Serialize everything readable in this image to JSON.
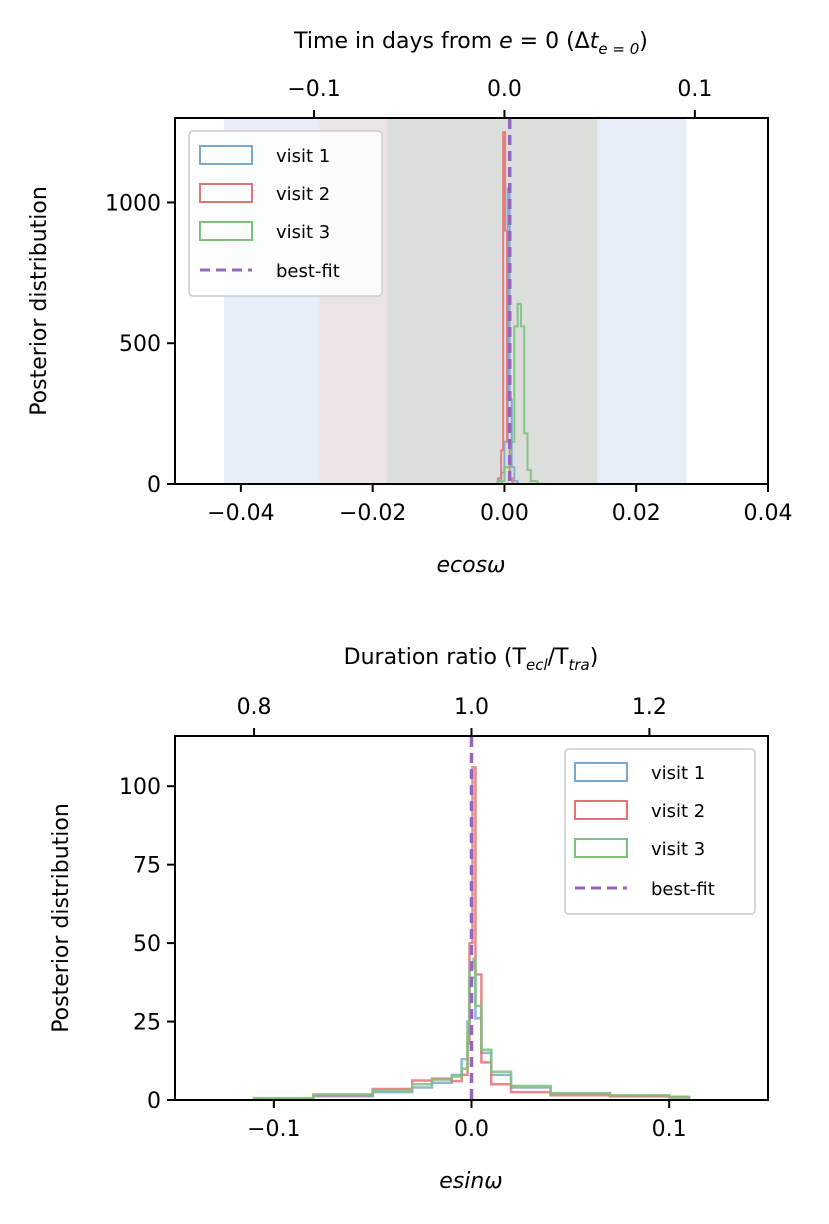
{
  "colors": {
    "visit1": "#7aa9cf",
    "visit2": "#e57373",
    "visit3": "#7cc27c",
    "bestfit": "#9467bd",
    "band1": "#e8eef8",
    "band2": "#ece4e4",
    "band3": "#dcdedb"
  },
  "chart_data": [
    {
      "type": "histogram",
      "title": "",
      "xlabel": "ecosω",
      "ylabel": "Posterior distribution",
      "xlim": [
        -0.05,
        0.04
      ],
      "ylim": [
        0,
        1300
      ],
      "xticks": [
        -0.04,
        -0.02,
        0.0,
        0.02,
        0.04
      ],
      "xtick_labels": [
        "−0.04",
        "−0.02",
        "0.00",
        "0.02",
        "0.04"
      ],
      "yticks": [
        0,
        500,
        1000
      ],
      "ytick_labels": [
        "0",
        "500",
        "1000"
      ],
      "top_axis": {
        "label": "Time in days from e = 0 (Δt",
        "label_main": "Time in days from ",
        "label_e": "e",
        "label_eq": " = 0 (Δ",
        "label_t": "t",
        "label_sub": "e = 0",
        "label_close": ")",
        "ticks": [
          -0.1,
          0.0,
          0.1
        ],
        "tick_labels": [
          "−0.1",
          "0.0",
          "0.1"
        ],
        "tick_positions_ecosw": [
          -0.0289,
          0.0,
          0.0289
        ]
      },
      "bands": [
        {
          "from": -0.0425,
          "to": 0.0275,
          "color_key": "band1"
        },
        {
          "from": -0.028,
          "to": 0.014,
          "color_key": "band2"
        },
        {
          "from": -0.0178,
          "to": 0.014,
          "color_key": "band3"
        }
      ],
      "series": [
        {
          "name": "visit 1",
          "color_key": "visit1",
          "bins": [
            [
              -0.0005,
              0.0,
              40
            ],
            [
              0.0,
              0.0005,
              150
            ],
            [
              0.0005,
              0.0008,
              1050
            ],
            [
              0.0008,
              0.0011,
              300
            ],
            [
              0.0011,
              0.0015,
              60
            ],
            [
              0.0015,
              0.002,
              10
            ]
          ]
        },
        {
          "name": "visit 2",
          "color_key": "visit2",
          "bins": [
            [
              -0.001,
              -0.0005,
              20
            ],
            [
              -0.0005,
              -0.0002,
              120
            ],
            [
              -0.0002,
              0.0001,
              1250
            ],
            [
              0.0001,
              0.0004,
              900
            ],
            [
              0.0004,
              0.0008,
              150
            ],
            [
              0.0008,
              0.0012,
              20
            ]
          ]
        },
        {
          "name": "visit 3",
          "color_key": "visit3",
          "bins": [
            [
              -0.001,
              0.0,
              10
            ],
            [
              0.0,
              0.001,
              60
            ],
            [
              0.001,
              0.0015,
              150
            ],
            [
              0.0015,
              0.002,
              560
            ],
            [
              0.002,
              0.0025,
              640
            ],
            [
              0.0025,
              0.003,
              560
            ],
            [
              0.003,
              0.0035,
              180
            ],
            [
              0.0035,
              0.004,
              50
            ],
            [
              0.004,
              0.005,
              10
            ]
          ]
        }
      ],
      "best_fit": 0.0008,
      "legend": {
        "position": "upper-left",
        "entries": [
          "visit 1",
          "visit 2",
          "visit 3",
          "best-fit"
        ]
      }
    },
    {
      "type": "histogram",
      "title": "",
      "xlabel": "esinω",
      "ylabel": "Posterior distribution",
      "xlim": [
        -0.15,
        0.15
      ],
      "ylim": [
        0,
        116
      ],
      "xticks": [
        -0.1,
        0.0,
        0.1
      ],
      "xtick_labels": [
        "−0.1",
        "0.0",
        "0.1"
      ],
      "yticks": [
        0,
        25,
        50,
        75,
        100
      ],
      "ytick_labels": [
        "0",
        "25",
        "50",
        "75",
        "100"
      ],
      "top_axis": {
        "label_main": "Duration ratio (T",
        "label_sub1": "ecl",
        "label_mid": "/T",
        "label_sub2": "tra",
        "label_close": ")",
        "ticks": [
          0.8,
          1.0,
          1.2
        ],
        "tick_labels": [
          "0.8",
          "1.0",
          "1.2"
        ],
        "tick_positions_esinw": [
          -0.11,
          0.0,
          0.09
        ]
      },
      "series": [
        {
          "name": "visit 1",
          "color_key": "visit1",
          "curve": [
            [
              -0.11,
              0.3
            ],
            [
              -0.08,
              1.2
            ],
            [
              -0.05,
              2.5
            ],
            [
              -0.03,
              4.0
            ],
            [
              -0.02,
              5.5
            ],
            [
              -0.01,
              8
            ],
            [
              -0.005,
              13
            ],
            [
              -0.002,
              25
            ],
            [
              -0.001,
              39
            ],
            [
              0.001,
              39
            ],
            [
              0.002,
              26
            ],
            [
              0.005,
              15
            ],
            [
              0.01,
              8
            ],
            [
              0.02,
              4
            ],
            [
              0.04,
              2
            ],
            [
              0.07,
              1.2
            ],
            [
              0.1,
              0.8
            ],
            [
              0.11,
              0.4
            ]
          ]
        },
        {
          "name": "visit 2",
          "color_key": "visit2",
          "curve": [
            [
              -0.11,
              0.3
            ],
            [
              -0.08,
              1.5
            ],
            [
              -0.05,
              3.5
            ],
            [
              -0.03,
              6.2
            ],
            [
              -0.02,
              6.8
            ],
            [
              -0.01,
              6
            ],
            [
              -0.005,
              8
            ],
            [
              -0.002,
              18
            ],
            [
              -0.001,
              50
            ],
            [
              0.0005,
              106
            ],
            [
              0.002,
              40
            ],
            [
              0.005,
              12
            ],
            [
              0.01,
              5
            ],
            [
              0.02,
              2.5
            ],
            [
              0.04,
              1.5
            ],
            [
              0.07,
              1.2
            ],
            [
              0.1,
              1.0
            ],
            [
              0.11,
              0.5
            ]
          ]
        },
        {
          "name": "visit 3",
          "color_key": "visit3",
          "curve": [
            [
              -0.11,
              0.6
            ],
            [
              -0.08,
              1.8
            ],
            [
              -0.05,
              3.0
            ],
            [
              -0.03,
              5.0
            ],
            [
              -0.02,
              6.5
            ],
            [
              -0.01,
              7.5
            ],
            [
              -0.005,
              10
            ],
            [
              -0.002,
              22
            ],
            [
              -0.001,
              42
            ],
            [
              0.001,
              45
            ],
            [
              0.002,
              30
            ],
            [
              0.005,
              16
            ],
            [
              0.01,
              9
            ],
            [
              0.02,
              4.5
            ],
            [
              0.04,
              2.2
            ],
            [
              0.07,
              1.5
            ],
            [
              0.1,
              1.0
            ],
            [
              0.11,
              0.5
            ]
          ]
        }
      ],
      "best_fit": 0.0,
      "legend": {
        "position": "upper-right",
        "entries": [
          "visit 1",
          "visit 2",
          "visit 3",
          "best-fit"
        ]
      }
    }
  ]
}
